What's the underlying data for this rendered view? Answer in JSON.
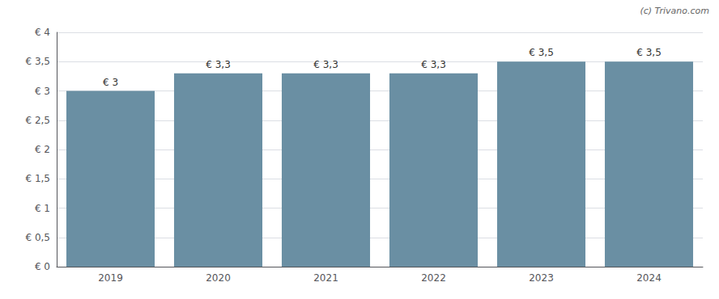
{
  "chart_data": {
    "type": "bar",
    "categories": [
      "2019",
      "2020",
      "2021",
      "2022",
      "2023",
      "2024"
    ],
    "values": [
      3.0,
      3.3,
      3.3,
      3.3,
      3.5,
      3.5
    ],
    "value_labels": [
      "€ 3",
      "€ 3,3",
      "€ 3,3",
      "€ 3,3",
      "€ 3,5",
      "€ 3,5"
    ],
    "data_labels": true,
    "color": "#6a8fa3",
    "ylim": [
      0,
      4
    ],
    "yticks": [
      {
        "value": 0,
        "label": "€ 0"
      },
      {
        "value": 0.5,
        "label": "€ 0,5"
      },
      {
        "value": 1.0,
        "label": "€ 1"
      },
      {
        "value": 1.5,
        "label": "€ 1,5"
      },
      {
        "value": 2.0,
        "label": "€ 2"
      },
      {
        "value": 2.5,
        "label": "€ 2,5"
      },
      {
        "value": 3.0,
        "label": "€ 3"
      },
      {
        "value": 3.5,
        "label": "€ 3,5"
      },
      {
        "value": 4.0,
        "label": "€ 4"
      }
    ],
    "grid": true,
    "annotations": [
      "(c) Trivano.com"
    ]
  }
}
